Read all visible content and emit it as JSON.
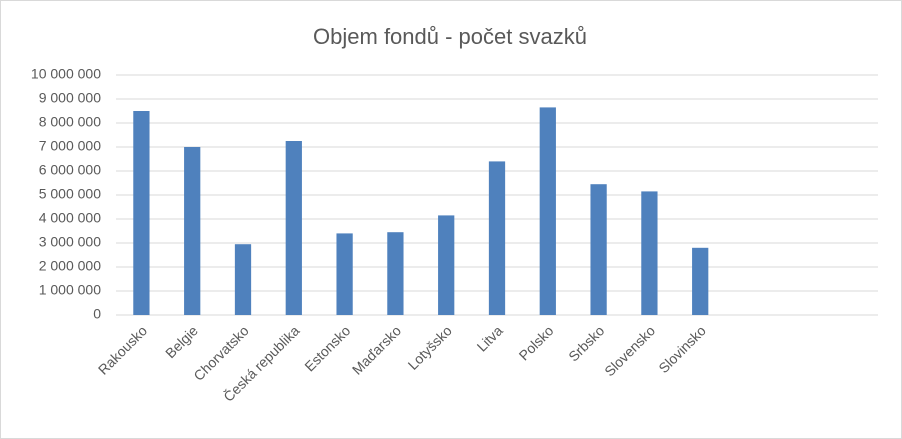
{
  "chart_data": {
    "type": "bar",
    "title": "Objem fondů - počet svazků",
    "categories": [
      "Rakousko",
      "Belgie",
      "Chorvatsko",
      "Česká republika",
      "Estonsko",
      "Maďarsko",
      "Lotyšsko",
      "Litva",
      "Polsko",
      "Srbsko",
      "Slovensko",
      "Slovinsko",
      null,
      null,
      null
    ],
    "values": [
      8500000,
      7000000,
      2950000,
      7250000,
      3400000,
      3450000,
      4150000,
      6400000,
      8650000,
      5450000,
      5150000,
      2800000,
      null,
      null,
      null
    ],
    "color": "#4f81bd",
    "ylim": [
      0,
      10000000
    ],
    "yticks": [
      0,
      {
        "value": 1000000,
        "label": "1 000 000"
      },
      {
        "value": 2000000,
        "label": "2 000 000"
      },
      {
        "value": 3000000,
        "label": "3 000 000"
      },
      {
        "value": 4000000,
        "label": "4 000 000"
      },
      {
        "value": 5000000,
        "label": "5 000 000"
      },
      {
        "value": 6000000,
        "label": "6 000 000"
      },
      {
        "value": 7000000,
        "label": "7 000 000"
      },
      {
        "value": 8000000,
        "label": "8 000 000"
      },
      {
        "value": 9000000,
        "label": "9 000 000"
      },
      {
        "value": 10000000,
        "label": "10 000 000"
      }
    ],
    "grid": true
  }
}
